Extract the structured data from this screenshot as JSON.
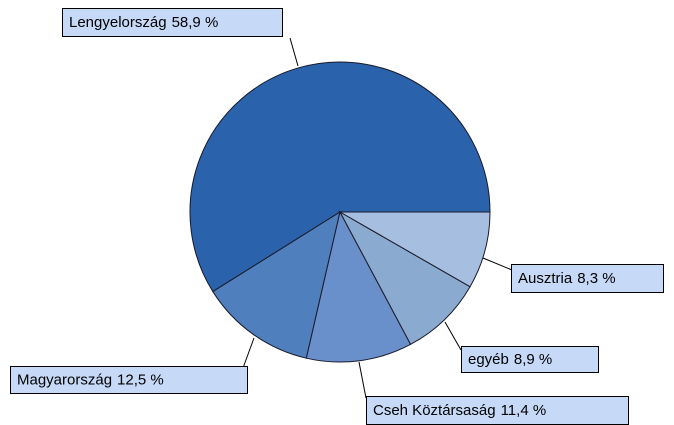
{
  "chart_data": {
    "type": "pie",
    "categories": [
      "Lengyelország",
      "Magyarország",
      "Cseh Köztársaság",
      "egyéb",
      "Ausztria"
    ],
    "values": [
      58.9,
      12.5,
      11.4,
      8.9,
      8.3
    ],
    "value_labels": [
      "58,9 %",
      "12,5 %",
      "11,4 %",
      "8,9 %",
      "8,3 %"
    ],
    "colors": [
      "#2a62ac",
      "#4f7fbc",
      "#6a90cc",
      "#8aaad0",
      "#a6bedf"
    ]
  }
}
